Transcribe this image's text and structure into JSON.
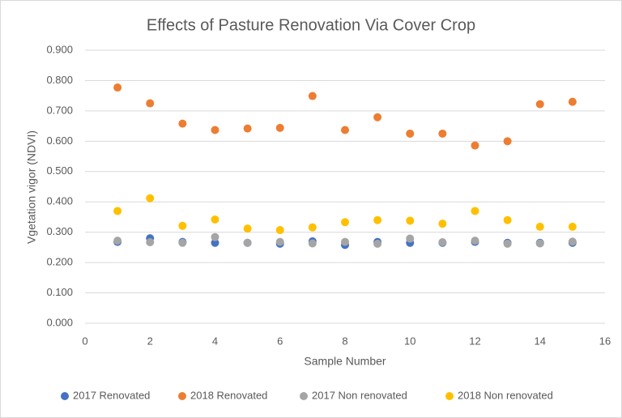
{
  "chart_data": {
    "type": "scatter",
    "title": "Effects of Pasture Renovation Via Cover Crop",
    "x_label": "Sample Number",
    "y_label": "Vgetation vigor (NDVI)",
    "x": [
      1,
      2,
      3,
      4,
      5,
      6,
      7,
      8,
      9,
      10,
      11,
      12,
      13,
      14,
      15
    ],
    "series": [
      {
        "name": "2017 Renovated",
        "color": "#4472c4",
        "values": [
          0.268,
          0.28,
          0.268,
          0.265,
          0.265,
          0.262,
          0.27,
          0.258,
          0.268,
          0.265,
          0.265,
          0.268,
          0.265,
          0.265,
          0.265
        ]
      },
      {
        "name": "2018 Renovated",
        "color": "#ed7d31",
        "values": [
          0.777,
          0.725,
          0.658,
          0.637,
          0.642,
          0.644,
          0.749,
          0.637,
          0.679,
          0.625,
          0.625,
          0.586,
          0.6,
          0.722,
          0.73
        ]
      },
      {
        "name": "2017 Non renovated",
        "color": "#a5a5a5",
        "values": [
          0.272,
          0.267,
          0.265,
          0.284,
          0.265,
          0.268,
          0.263,
          0.268,
          0.262,
          0.279,
          0.267,
          0.272,
          0.262,
          0.263,
          0.269
        ]
      },
      {
        "name": "2018 Non renovated",
        "color": "#ffc000",
        "values": [
          0.37,
          0.412,
          0.321,
          0.342,
          0.312,
          0.307,
          0.316,
          0.333,
          0.34,
          0.338,
          0.328,
          0.37,
          0.34,
          0.318,
          0.318
        ]
      }
    ],
    "xlim": [
      0,
      16
    ],
    "xticks": [
      0,
      2,
      4,
      6,
      8,
      10,
      12,
      14,
      16
    ],
    "ylim": [
      0,
      0.9
    ],
    "yticks": [
      {
        "value": 0,
        "label": "0.000"
      },
      {
        "value": 0.1,
        "label": "0.100"
      },
      {
        "value": 0.2,
        "label": "0.200"
      },
      {
        "value": 0.3,
        "label": "0.300"
      },
      {
        "value": 0.4,
        "label": "0.400"
      },
      {
        "value": 0.5,
        "label": "0.500"
      },
      {
        "value": 0.6,
        "label": "0.600"
      },
      {
        "value": 0.7,
        "label": "0.700"
      },
      {
        "value": 0.8,
        "label": "0.800"
      },
      {
        "value": 0.9,
        "label": "0.900"
      }
    ],
    "grid": true,
    "legend": "bottom"
  }
}
